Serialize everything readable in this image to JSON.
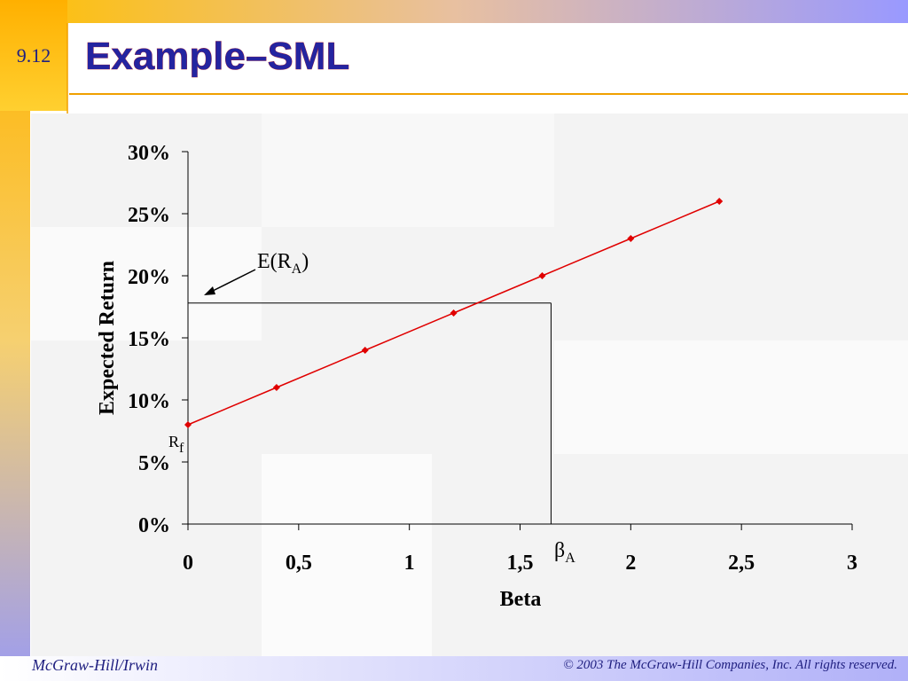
{
  "slide": {
    "number": "9.12",
    "title": "Example–SML",
    "footer_left": "McGraw-Hill/Irwin",
    "footer_right": "© 2003 The McGraw-Hill Companies, Inc. All rights reserved."
  },
  "chart_data": {
    "type": "line",
    "x_label": "Beta",
    "y_label": "Expected Return",
    "x": [
      0,
      0.4,
      0.8,
      1.2,
      1.6,
      2.0,
      2.4
    ],
    "series": [
      {
        "name": "SML",
        "color": "#e00000",
        "values": [
          8,
          11,
          14,
          17,
          20,
          23,
          26
        ]
      }
    ],
    "xlim": [
      0,
      3
    ],
    "xticks": [
      0,
      {
        "value": 0.5,
        "label": "0,5"
      },
      1,
      {
        "value": 1.5,
        "label": "1,5"
      },
      2,
      {
        "value": 2.5,
        "label": "2,5"
      },
      3
    ],
    "ylim": [
      0,
      30
    ],
    "yticks": [
      {
        "value": 0,
        "label": "0%"
      },
      {
        "value": 5,
        "label": "5%"
      },
      {
        "value": 10,
        "label": "10%"
      },
      {
        "value": 15,
        "label": "15%"
      },
      {
        "value": 20,
        "label": "20%"
      },
      {
        "value": 25,
        "label": "25%"
      },
      {
        "value": 30,
        "label": "30%"
      }
    ],
    "guide": {
      "beta": 1.64,
      "expected_return": 17.8
    },
    "annotations": {
      "expected_return": {
        "main": "E(R",
        "sub": "A",
        "end": ")"
      },
      "risk_free": {
        "main": "R",
        "sub": "f"
      },
      "beta": {
        "main": "β",
        "sub": "A"
      }
    }
  }
}
